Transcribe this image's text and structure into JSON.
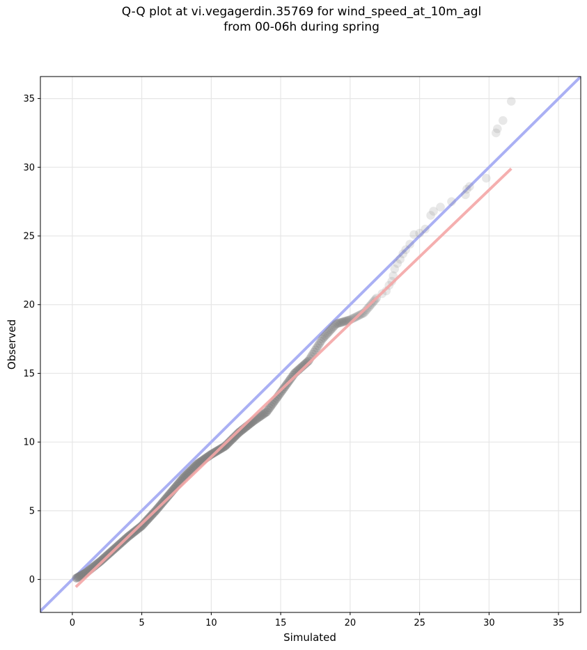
{
  "chart_data": {
    "type": "scatter",
    "title_line1": "Q-Q plot at vi.vegagerdin.35769 for wind_speed_at_10m_agl",
    "title_line2": "from 00-06h during spring",
    "xlabel": "Simulated",
    "ylabel": "Observed",
    "xlim": [
      -2.3,
      36.6
    ],
    "ylim": [
      -2.4,
      36.6
    ],
    "xticks": [
      0,
      5,
      10,
      15,
      20,
      25,
      30,
      35
    ],
    "yticks": [
      0,
      5,
      10,
      15,
      20,
      25,
      30,
      35
    ],
    "grid": true,
    "reference_line": {
      "color": "#aab0f4",
      "slope": 1,
      "intercept": 0
    },
    "fit_line": {
      "color": "#f4a6a6",
      "x": [
        0.25,
        31.6
      ],
      "y": [
        -0.55,
        29.9
      ]
    },
    "point_color": "#808080",
    "anchors": [
      [
        0.3,
        0.1
      ],
      [
        1,
        0.5
      ],
      [
        2,
        1.3
      ],
      [
        3,
        2.2
      ],
      [
        4,
        3.1
      ],
      [
        5,
        3.9
      ],
      [
        6,
        5.0
      ],
      [
        7,
        6.2
      ],
      [
        8,
        7.4
      ],
      [
        9,
        8.4
      ],
      [
        10,
        9.1
      ],
      [
        11,
        9.7
      ],
      [
        12,
        10.7
      ],
      [
        13,
        11.5
      ],
      [
        14,
        12.2
      ],
      [
        15,
        13.6
      ],
      [
        16,
        15.0
      ],
      [
        17,
        15.9
      ],
      [
        18,
        17.5
      ],
      [
        19,
        18.6
      ],
      [
        20,
        18.9
      ],
      [
        21,
        19.4
      ],
      [
        22,
        20.6
      ]
    ],
    "upper_tail": [
      [
        22.3,
        20.8
      ],
      [
        22.6,
        21.0
      ],
      [
        22.8,
        21.4
      ],
      [
        23.0,
        21.7
      ],
      [
        23.1,
        22.1
      ],
      [
        23.2,
        22.6
      ],
      [
        23.4,
        23.0
      ],
      [
        23.6,
        23.3
      ],
      [
        23.8,
        23.7
      ],
      [
        24.0,
        24.0
      ],
      [
        24.3,
        24.4
      ],
      [
        24.6,
        25.1
      ],
      [
        25.0,
        25.2
      ],
      [
        25.4,
        25.5
      ],
      [
        25.8,
        26.5
      ],
      [
        26.0,
        26.8
      ],
      [
        26.5,
        27.1
      ],
      [
        27.3,
        27.5
      ],
      [
        28.3,
        28.0
      ],
      [
        28.4,
        28.4
      ],
      [
        28.6,
        28.6
      ],
      [
        29.8,
        29.2
      ],
      [
        30.5,
        32.5
      ],
      [
        30.6,
        32.8
      ],
      [
        31.0,
        33.4
      ],
      [
        31.6,
        34.8
      ]
    ]
  }
}
